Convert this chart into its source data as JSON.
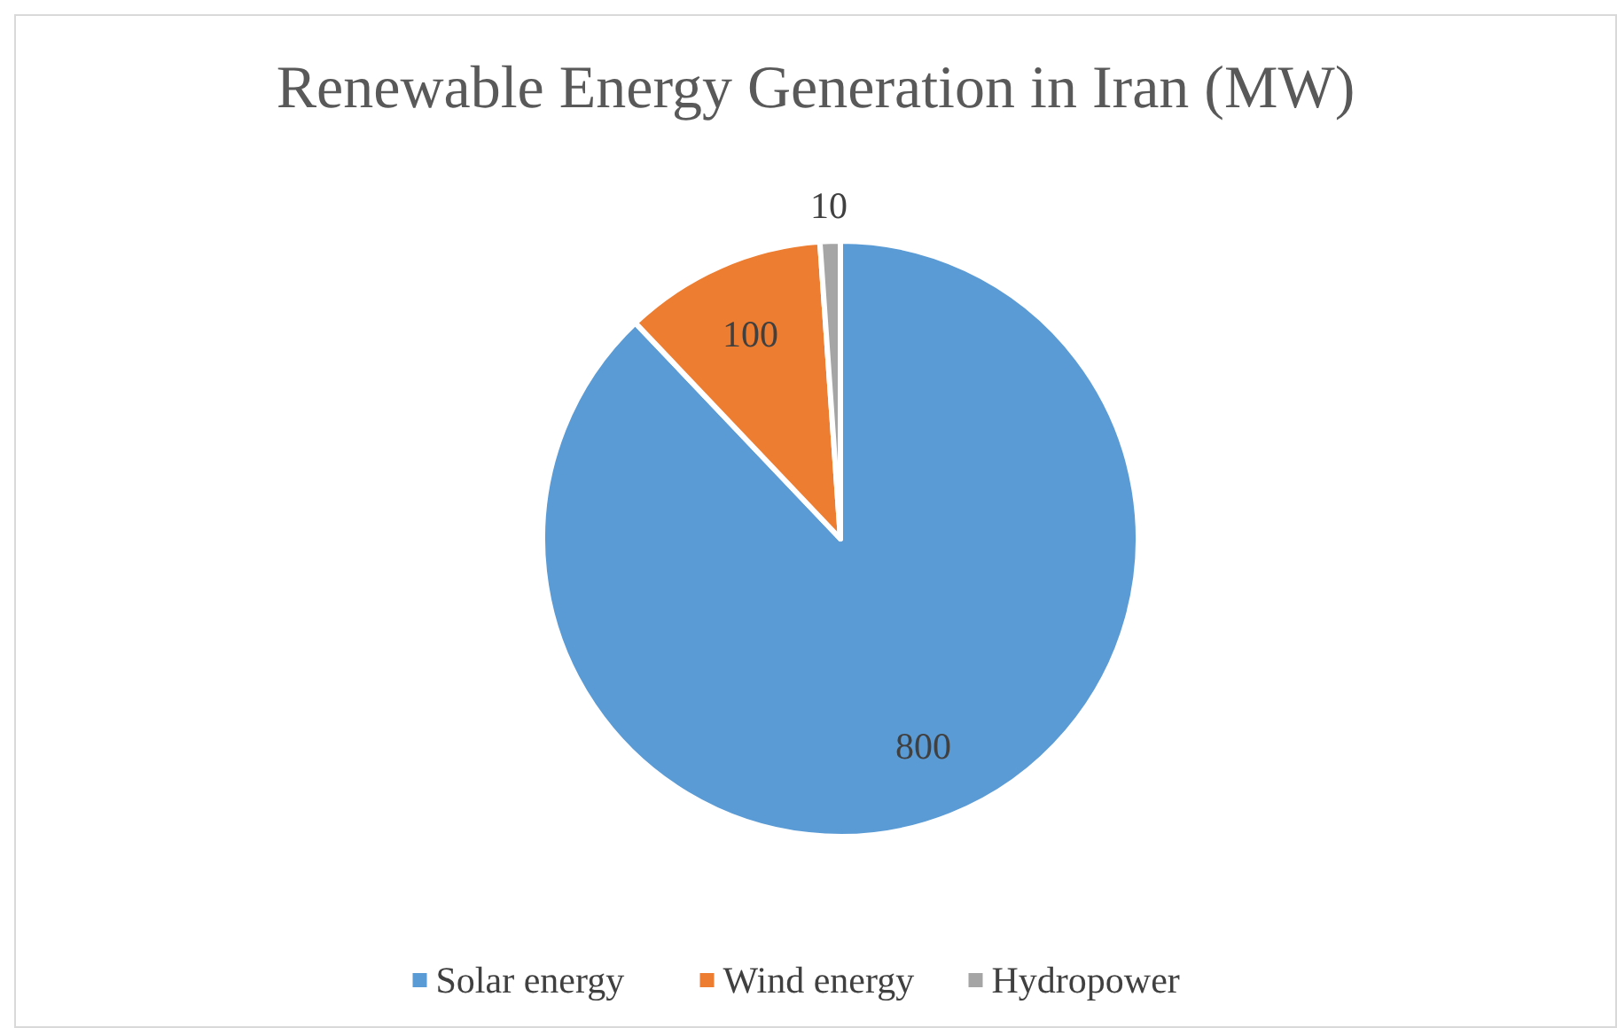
{
  "chart_data": {
    "type": "pie",
    "title": "Renewable Energy Generation in Iran (MW)",
    "categories": [
      "Solar energy",
      "Wind energy",
      "Hydropower"
    ],
    "values": [
      800,
      100,
      10
    ],
    "colors": [
      "#5b9bd5",
      "#ed7d31",
      "#a5a5a5"
    ],
    "data_labels": true,
    "legend": "bottom"
  }
}
